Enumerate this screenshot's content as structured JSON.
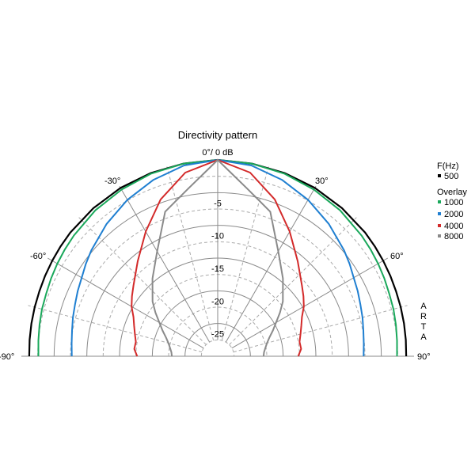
{
  "chart_data": {
    "type": "polar",
    "title": "Directivity pattern",
    "top_label": "0°/ 0 dB",
    "radial_ticks": [
      {
        "value": -5,
        "label": "-5"
      },
      {
        "value": -10,
        "label": "-10"
      },
      {
        "value": -15,
        "label": "-15"
      },
      {
        "value": -20,
        "label": "-20"
      },
      {
        "value": -25,
        "label": "-25"
      }
    ],
    "radial_range_db": [
      -30,
      0
    ],
    "angle_range_deg": [
      -90,
      90
    ],
    "angle_labels": [
      {
        "deg": -90,
        "label": "-90°"
      },
      {
        "deg": -60,
        "label": "-60°"
      },
      {
        "deg": -30,
        "label": "-30°"
      },
      {
        "deg": 30,
        "label": "30°"
      },
      {
        "deg": 60,
        "label": "60°"
      },
      {
        "deg": 90,
        "label": "90°"
      }
    ],
    "grid": true,
    "legend": {
      "placement": "right",
      "header": "F(Hz)",
      "overlay_header": "Overlay"
    },
    "watermark": "ARTA",
    "angles_deg": [
      0,
      10,
      20,
      30,
      40,
      50,
      55,
      60,
      65,
      70,
      75,
      80,
      85,
      90
    ],
    "series": [
      {
        "name": "500",
        "color": "#000000",
        "values": [
          0,
          -0.1,
          -0.2,
          -0.3,
          -0.45,
          -0.6,
          -0.7,
          -0.8,
          -0.9,
          -1.0,
          -1.05,
          -1.1,
          -1.15,
          -1.2
        ]
      },
      {
        "name": "1000",
        "color": "#1aa85b",
        "values": [
          0,
          -0.1,
          -0.3,
          -0.6,
          -0.9,
          -1.3,
          -1.5,
          -1.7,
          -1.9,
          -2.1,
          -2.2,
          -2.35,
          -2.5,
          -2.6
        ]
      },
      {
        "name": "2000",
        "color": "#1f7fd1",
        "values": [
          0,
          -0.4,
          -1.3,
          -2.4,
          -3.6,
          -4.8,
          -5.4,
          -6.0,
          -6.4,
          -6.8,
          -7.1,
          -7.4,
          -7.6,
          -7.7
        ]
      },
      {
        "name": "4000",
        "color": "#d32a2a",
        "values": [
          0,
          -1.5,
          -4.5,
          -8.0,
          -11.0,
          -13.2,
          -14.0,
          -14.8,
          -15.8,
          -16.4,
          -16.9,
          -17.3,
          -17.2,
          -17.7
        ]
      },
      {
        "name": "8000",
        "color": "#8a8a8a",
        "values": [
          0,
          -4.0,
          -6.5,
          -11.5,
          -14.5,
          -17.0,
          -18.4,
          -19.7,
          -20.7,
          -21.6,
          -22.2,
          -22.6,
          -22.9,
          -23.0
        ]
      }
    ]
  }
}
